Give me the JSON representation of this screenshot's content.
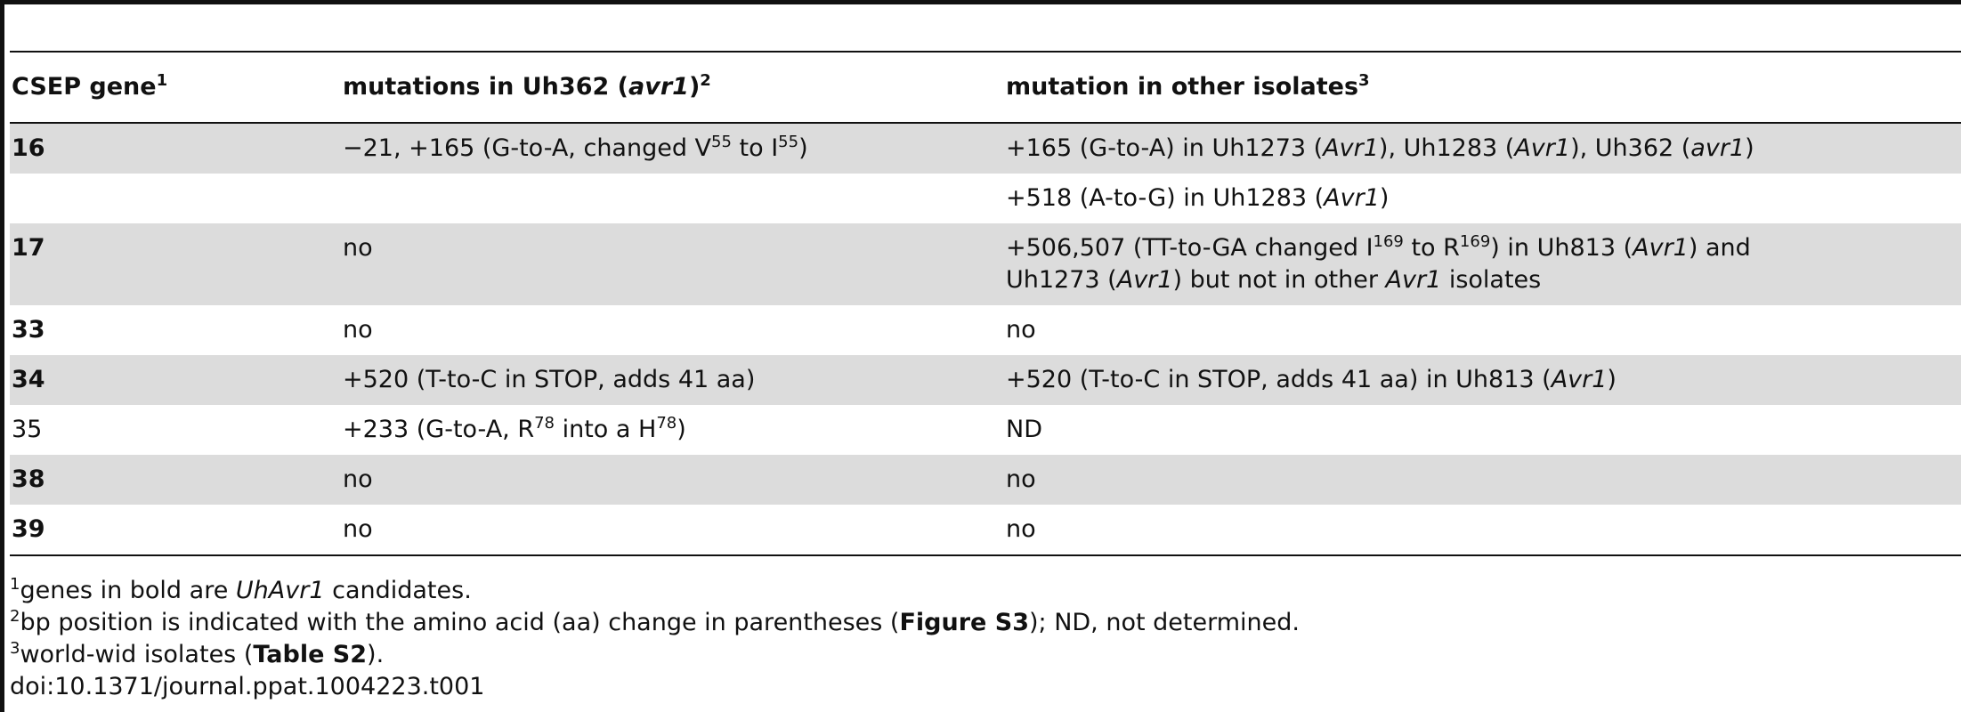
{
  "table": {
    "headers": {
      "col1": "CSEP gene",
      "col1_sup": "1",
      "col2_pre": "mutations in Uh362 (",
      "col2_ital": "avr1",
      "col2_post": ")",
      "col2_sup": "2",
      "col3": "mutation in other isolates",
      "col3_sup": "3"
    },
    "rows": [
      {
        "gene": "16",
        "col2": {
          "p1": "−21, +165 (G-to-A, changed V",
          "s1": "55",
          "p2": " to I",
          "s2": "55",
          "p3": ")"
        },
        "col3": {
          "p1": "+165 (G-to-A) in Uh1273 (",
          "i1": "Avr1",
          "p2": "), Uh1283 (",
          "i2": "Avr1",
          "p3": "), Uh362 (",
          "i3": "avr1",
          "p4": ")"
        }
      },
      {
        "gene": "",
        "col3": {
          "p1": "+518 (A-to-G) in Uh1283 (",
          "i1": "Avr1",
          "p2": ")"
        }
      },
      {
        "gene": "17",
        "col2": "no",
        "col3": {
          "p1": "+506,507 (TT-to-GA changed I",
          "s1": "169",
          "p2": " to R",
          "s2": "169",
          "p3": ") in Uh813 (",
          "i1": "Avr1",
          "p4": ") and",
          "p5": "Uh1273 (",
          "i2": "Avr1",
          "p6": ") but not in other ",
          "i3": "Avr1",
          "p7": " isolates"
        }
      },
      {
        "gene": "33",
        "col2": "no",
        "col3": "no"
      },
      {
        "gene": "34",
        "col2": "+520 (T-to-C in STOP, adds 41 aa)",
        "col3": {
          "p1": "+520 (T-to-C in STOP, adds 41 aa) in Uh813 (",
          "i1": "Avr1",
          "p2": ")"
        }
      },
      {
        "gene": "35",
        "col2": {
          "p1": "+233 (G-to-A, R",
          "s1": "78",
          "p2": " into a H",
          "s2": "78",
          "p3": ")"
        },
        "col3": "ND"
      },
      {
        "gene": "38",
        "col2": "no",
        "col3": "no"
      },
      {
        "gene": "39",
        "col2": "no",
        "col3": "no"
      }
    ]
  },
  "footnotes": {
    "f1": {
      "sup": "1",
      "p1": "genes in bold are ",
      "i1": "UhAvr1",
      "p2": " candidates."
    },
    "f2": {
      "sup": "2",
      "p1": "bp position is indicated with the amino acid (aa) change in parentheses (",
      "b1": "Figure S3",
      "p2": "); ND, not determined."
    },
    "f3": {
      "sup": "3",
      "p1": "world-wid isolates (",
      "b1": "Table S2",
      "p2": ")."
    },
    "doi": "doi:10.1371/journal.ppat.1004223.t001"
  }
}
